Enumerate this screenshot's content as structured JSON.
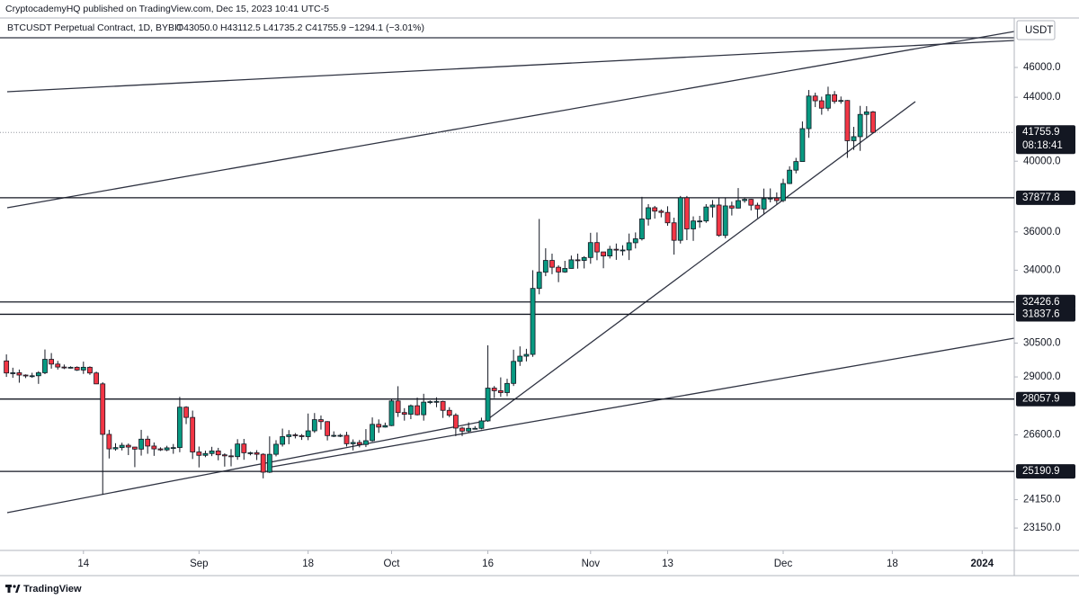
{
  "chart_data": {
    "type": "candlestick",
    "header": "CryptocademyHQ published on TradingView.com, Dec 15, 2023 10:41 UTC-5",
    "symbol": "BTCUSDT Perpetual Contract, 1D, BYBIT",
    "ohlc_legend": "O43050.0 H43112.5 L41735.2 C41755.9 −1294.1 (−3.01%)",
    "currency": "USDT",
    "brand": "TradingView",
    "up_color": "#089981",
    "down_color": "#f23645",
    "log_scale": true,
    "grid": false,
    "xlim": [
      "2023-08-01",
      "2024-01-06"
    ],
    "xticks": [
      {
        "value": "2023-08-14",
        "label": "14"
      },
      {
        "value": "2023-09-01",
        "label": "Sep"
      },
      {
        "value": "2023-09-18",
        "label": "18"
      },
      {
        "value": "2023-10-01",
        "label": "Oct"
      },
      {
        "value": "2023-10-16",
        "label": "16"
      },
      {
        "value": "2023-11-01",
        "label": "Nov"
      },
      {
        "value": "2023-11-13",
        "label": "13"
      },
      {
        "value": "2023-12-01",
        "label": "Dec"
      },
      {
        "value": "2023-12-18",
        "label": "18"
      },
      {
        "value": "2024-01-01",
        "label": "2024"
      }
    ],
    "ylim": [
      22390,
      49520
    ],
    "yticks": [
      {
        "value": 46000,
        "label": "46000.0"
      },
      {
        "value": 44000,
        "label": "44000.0"
      },
      {
        "value": 40000,
        "label": "40000.0"
      },
      {
        "value": 36000,
        "label": "36000.0"
      },
      {
        "value": 34000,
        "label": "34000.0"
      },
      {
        "value": 30500,
        "label": "30500.0"
      },
      {
        "value": 29000,
        "label": "29000.0"
      },
      {
        "value": 26600,
        "label": "26600.0"
      },
      {
        "value": 24150,
        "label": "24150.0"
      },
      {
        "value": 23150,
        "label": "23150.0"
      }
    ],
    "levels": [
      37877.8,
      32426.6,
      31837.6,
      28057.9,
      25190.9
    ],
    "last_price": 41755.9,
    "countdown": "08:18:41",
    "x": [
      "2023-08-02",
      "2023-08-03",
      "2023-08-04",
      "2023-08-05",
      "2023-08-06",
      "2023-08-07",
      "2023-08-08",
      "2023-08-09",
      "2023-08-10",
      "2023-08-11",
      "2023-08-12",
      "2023-08-13",
      "2023-08-14",
      "2023-08-15",
      "2023-08-16",
      "2023-08-17",
      "2023-08-18",
      "2023-08-19",
      "2023-08-20",
      "2023-08-21",
      "2023-08-22",
      "2023-08-23",
      "2023-08-24",
      "2023-08-25",
      "2023-08-26",
      "2023-08-27",
      "2023-08-28",
      "2023-08-29",
      "2023-08-30",
      "2023-08-31",
      "2023-09-01",
      "2023-09-02",
      "2023-09-03",
      "2023-09-04",
      "2023-09-05",
      "2023-09-06",
      "2023-09-07",
      "2023-09-08",
      "2023-09-09",
      "2023-09-10",
      "2023-09-11",
      "2023-09-12",
      "2023-09-13",
      "2023-09-14",
      "2023-09-15",
      "2023-09-16",
      "2023-09-17",
      "2023-09-18",
      "2023-09-19",
      "2023-09-20",
      "2023-09-21",
      "2023-09-22",
      "2023-09-23",
      "2023-09-24",
      "2023-09-25",
      "2023-09-26",
      "2023-09-27",
      "2023-09-28",
      "2023-09-29",
      "2023-09-30",
      "2023-10-01",
      "2023-10-02",
      "2023-10-03",
      "2023-10-04",
      "2023-10-05",
      "2023-10-06",
      "2023-10-07",
      "2023-10-08",
      "2023-10-09",
      "2023-10-10",
      "2023-10-11",
      "2023-10-12",
      "2023-10-13",
      "2023-10-14",
      "2023-10-15",
      "2023-10-16",
      "2023-10-17",
      "2023-10-18",
      "2023-10-19",
      "2023-10-20",
      "2023-10-21",
      "2023-10-22",
      "2023-10-23",
      "2023-10-24",
      "2023-10-25",
      "2023-10-26",
      "2023-10-27",
      "2023-10-28",
      "2023-10-29",
      "2023-10-30",
      "2023-10-31",
      "2023-11-01",
      "2023-11-02",
      "2023-11-03",
      "2023-11-04",
      "2023-11-05",
      "2023-11-06",
      "2023-11-07",
      "2023-11-08",
      "2023-11-09",
      "2023-11-10",
      "2023-11-11",
      "2023-11-12",
      "2023-11-13",
      "2023-11-14",
      "2023-11-15",
      "2023-11-16",
      "2023-11-17",
      "2023-11-18",
      "2023-11-19",
      "2023-11-20",
      "2023-11-21",
      "2023-11-22",
      "2023-11-23",
      "2023-11-24",
      "2023-11-25",
      "2023-11-26",
      "2023-11-27",
      "2023-11-28",
      "2023-11-29",
      "2023-11-30",
      "2023-12-01",
      "2023-12-02",
      "2023-12-03",
      "2023-12-04",
      "2023-12-05",
      "2023-12-06",
      "2023-12-07",
      "2023-12-08",
      "2023-12-09",
      "2023-12-10",
      "2023-12-11",
      "2023-12-12",
      "2023-12-13",
      "2023-12-14",
      "2023-12-15"
    ],
    "open": [
      29700,
      29170,
      29180,
      29080,
      29050,
      29050,
      29180,
      29770,
      29560,
      29430,
      29400,
      29420,
      29300,
      29420,
      29170,
      28700,
      26620,
      26050,
      26100,
      26190,
      26120,
      26040,
      26430,
      26160,
      26050,
      26010,
      26090,
      26100,
      27720,
      27300,
      25930,
      25800,
      25870,
      25970,
      25820,
      25780,
      25750,
      26240,
      25900,
      25900,
      25840,
      25160,
      25840,
      26230,
      26530,
      26600,
      26570,
      26530,
      26760,
      27210,
      27130,
      26570,
      26580,
      26580,
      26250,
      26300,
      26220,
      26370,
      27020,
      26910,
      26970,
      27980,
      27500,
      27430,
      27780,
      27410,
      27930,
      27950,
      27960,
      27590,
      27390,
      26870,
      26750,
      26860,
      26860,
      27160,
      28520,
      28410,
      28330,
      28720,
      29680,
      29910,
      29990,
      33090,
      33900,
      34500,
      34150,
      33910,
      34090,
      34530,
      34500,
      34650,
      35430,
      34940,
      34730,
      35080,
      35040,
      35040,
      35420,
      35630,
      36700,
      37320,
      37130,
      37060,
      36490,
      35550,
      37880,
      36160,
      36590,
      36590,
      37360,
      37470,
      35810,
      37420,
      37300,
      37720,
      37790,
      37460,
      37250,
      37820,
      37860,
      37720,
      38690,
      39470,
      39980,
      41990,
      44080,
      43770,
      43290,
      44170,
      43730,
      43790,
      41240,
      41490,
      42890,
      43050
    ],
    "high": [
      29990,
      29400,
      29320,
      29110,
      29180,
      29250,
      30210,
      30050,
      29700,
      29540,
      29460,
      29460,
      29670,
      29460,
      29230,
      28770,
      26800,
      26270,
      26290,
      26260,
      26130,
      26800,
      26560,
      26300,
      26110,
      26170,
      26240,
      28150,
      27760,
      27580,
      26140,
      25980,
      26130,
      26090,
      25880,
      26040,
      26430,
      26440,
      25940,
      26000,
      25880,
      26540,
      26390,
      26850,
      26790,
      26670,
      26630,
      27460,
      27480,
      27380,
      27150,
      26740,
      26640,
      26720,
      26420,
      26400,
      26830,
      27300,
      27220,
      27090,
      28060,
      28600,
      27680,
      27830,
      28120,
      28280,
      28000,
      28130,
      27990,
      27720,
      27470,
      26920,
      27100,
      26950,
      27290,
      30400,
      28610,
      28980,
      28920,
      30200,
      30350,
      30240,
      34000,
      36700,
      35130,
      34850,
      34250,
      34480,
      34750,
      34850,
      34720,
      35950,
      35970,
      34940,
      35260,
      35380,
      35290,
      35910,
      35970,
      37930,
      37520,
      37420,
      37230,
      37400,
      36770,
      37980,
      37980,
      36840,
      36870,
      37520,
      37750,
      37880,
      37880,
      37660,
      38430,
      37880,
      37820,
      37600,
      38400,
      38410,
      38180,
      38970,
      39700,
      40200,
      42440,
      44480,
      44300,
      44040,
      44700,
      44410,
      44050,
      43820,
      42100,
      43440,
      43420,
      43112.5
    ],
    "low": [
      29000,
      28960,
      28750,
      28950,
      28960,
      28700,
      29120,
      29360,
      29320,
      29340,
      29370,
      29260,
      29130,
      29090,
      28690,
      24330,
      25680,
      25980,
      25990,
      25810,
      25350,
      25790,
      25860,
      25780,
      25970,
      25960,
      25860,
      25920,
      27030,
      25660,
      25340,
      25730,
      25770,
      25610,
      25370,
      25380,
      25630,
      25630,
      25800,
      25620,
      24930,
      25130,
      25760,
      26140,
      26230,
      26460,
      26400,
      26390,
      26680,
      26810,
      26380,
      26510,
      26510,
      26140,
      25990,
      26110,
      26120,
      26330,
      26680,
      26890,
      26950,
      27320,
      27170,
      27230,
      27380,
      27170,
      27850,
      27720,
      27280,
      27310,
      26550,
      26550,
      26700,
      26820,
      26820,
      27120,
      28100,
      28150,
      28180,
      28610,
      29480,
      29680,
      29880,
      32800,
      33700,
      33800,
      33400,
      33870,
      34080,
      34080,
      34090,
      34330,
      34510,
      34100,
      34600,
      34530,
      34750,
      34520,
      35120,
      35540,
      36340,
      36720,
      36790,
      36330,
      34800,
      35380,
      35560,
      35520,
      36220,
      36490,
      36780,
      35740,
      35660,
      36890,
      37280,
      37600,
      37170,
      36750,
      36950,
      37620,
      37530,
      37630,
      38660,
      39280,
      39980,
      41420,
      43360,
      42870,
      43110,
      43580,
      43580,
      40200,
      40680,
      40620,
      41420,
      41735.2
    ],
    "close": [
      29170,
      29180,
      29080,
      29050,
      29050,
      29180,
      29770,
      29560,
      29430,
      29400,
      29420,
      29300,
      29420,
      29170,
      28700,
      26620,
      26050,
      26100,
      26190,
      26120,
      26040,
      26430,
      26160,
      26050,
      26010,
      26090,
      26100,
      27720,
      27300,
      25930,
      25800,
      25870,
      25970,
      25820,
      25780,
      25750,
      26240,
      25900,
      25900,
      25840,
      25160,
      25840,
      26230,
      26530,
      26600,
      26570,
      26530,
      26760,
      27210,
      27130,
      26570,
      26580,
      26580,
      26250,
      26300,
      26220,
      26370,
      27020,
      26910,
      26970,
      27980,
      27500,
      27430,
      27780,
      27410,
      27930,
      27950,
      27960,
      27590,
      27390,
      26870,
      26750,
      26860,
      26860,
      27160,
      28520,
      28410,
      28330,
      28720,
      29680,
      29910,
      29990,
      33090,
      33900,
      34500,
      34150,
      33910,
      34090,
      34530,
      34500,
      34650,
      35430,
      34940,
      34730,
      35080,
      35040,
      35040,
      35420,
      35630,
      36700,
      37320,
      37130,
      37060,
      36490,
      35550,
      37880,
      36160,
      36590,
      36590,
      37360,
      37470,
      35810,
      37420,
      37300,
      37720,
      37790,
      37460,
      37250,
      37820,
      37860,
      37720,
      38690,
      39470,
      39980,
      41990,
      44080,
      43770,
      43290,
      44170,
      43730,
      43790,
      41240,
      41490,
      42890,
      43050,
      41755.9
    ]
  }
}
